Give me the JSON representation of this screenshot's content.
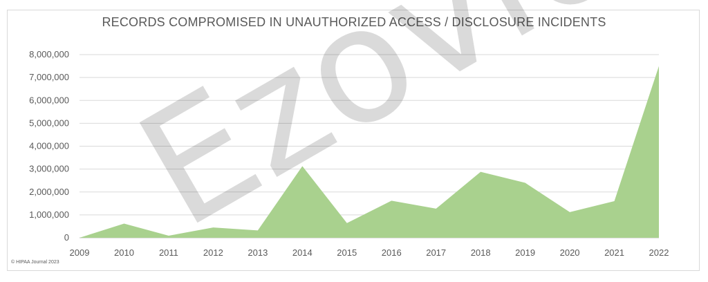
{
  "chart_data": {
    "type": "area",
    "title": "RECORDS COMPROMISED IN UNAUTHORIZED ACCESS / DISCLOSURE INCIDENTS",
    "xlabel": "",
    "ylabel": "",
    "x": [
      "2009",
      "2010",
      "2011",
      "2012",
      "2013",
      "2014",
      "2015",
      "2016",
      "2017",
      "2018",
      "2019",
      "2020",
      "2021",
      "2022"
    ],
    "values": [
      0,
      620000,
      90000,
      450000,
      320000,
      3130000,
      640000,
      1620000,
      1270000,
      2880000,
      2400000,
      1120000,
      1600000,
      7500000
    ],
    "ylim": [
      0,
      8000000
    ],
    "y_ticks": [
      "0",
      "1,000,000",
      "2,000,000",
      "3,000,000",
      "4,000,000",
      "5,000,000",
      "6,000,000",
      "7,000,000",
      "8,000,000"
    ],
    "grid": true,
    "fill_color": "#a9d18e"
  },
  "copyright": "© HIPAA Journal 2023",
  "watermark": "Ezovion"
}
